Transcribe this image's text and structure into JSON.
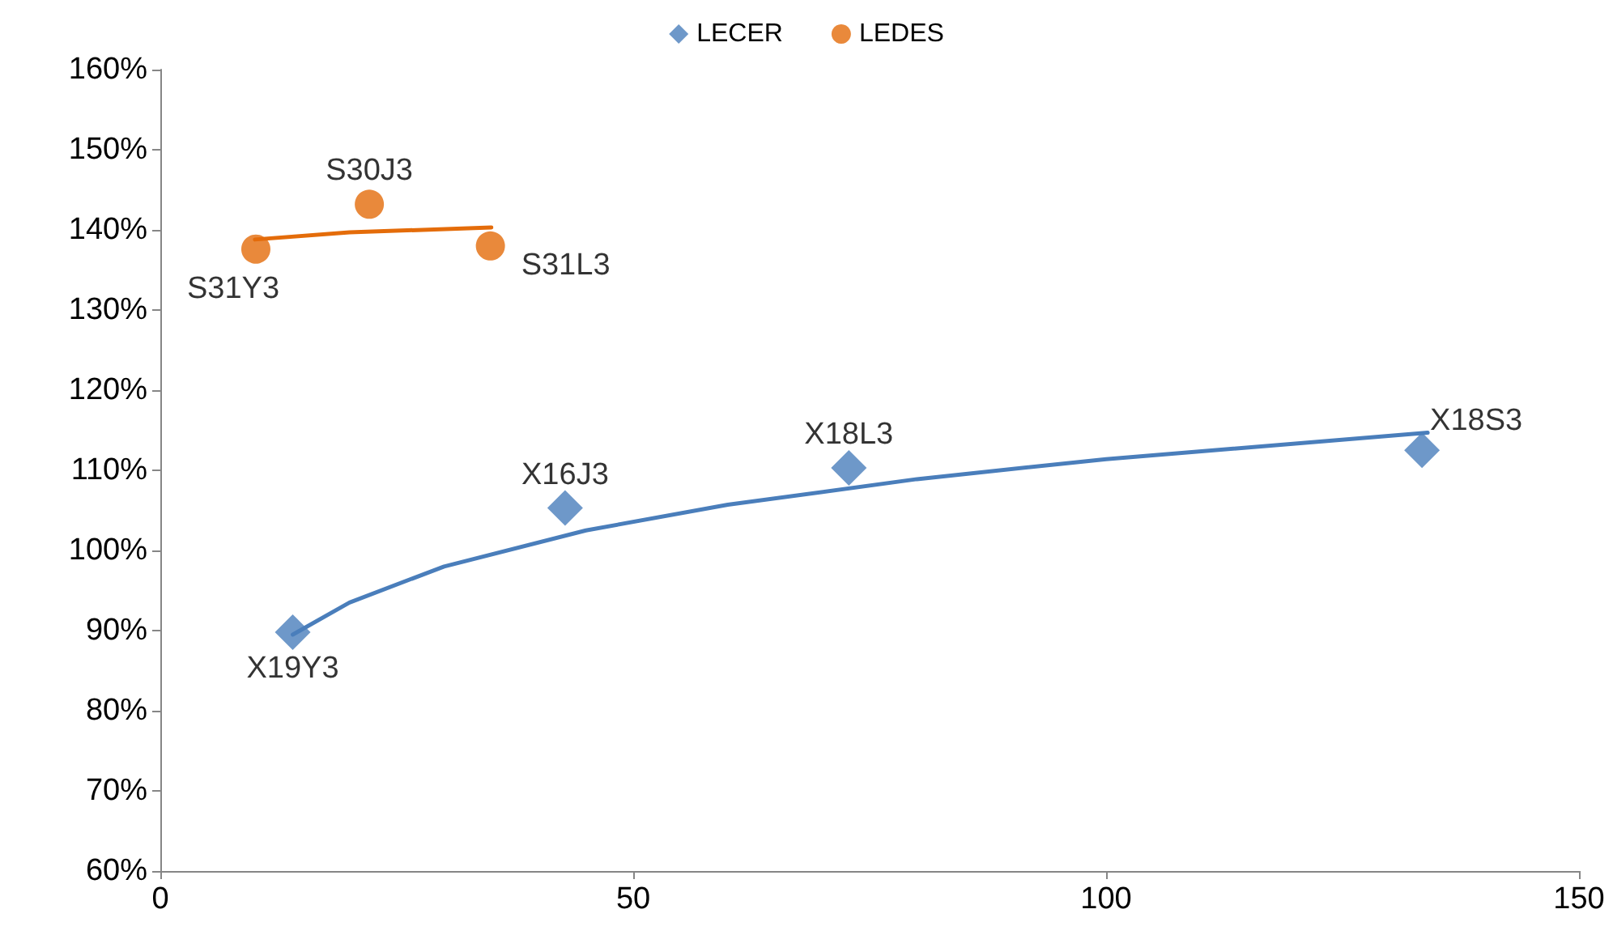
{
  "chart_data": {
    "type": "scatter",
    "series": [
      {
        "name": "LECER",
        "color": "#4a7ebb",
        "marker": "diamond",
        "x": [
          14,
          42.8,
          72.8,
          133.4
        ],
        "values": [
          89.8,
          105.3,
          110.3,
          112.5
        ]
      },
      {
        "name": "LEDES",
        "color": "#e46c0a",
        "marker": "circle",
        "x": [
          10.1,
          22.1,
          34.9
        ],
        "values": [
          137.6,
          143.2,
          138
        ]
      },
      {
        "type": "line",
        "color": "#4a7ebb",
        "marker": "none",
        "x": [
          14,
          20,
          30,
          45,
          60,
          80,
          100,
          134
        ],
        "values": [
          89.5,
          93.5,
          98,
          102.5,
          105.7,
          108.9,
          111.4,
          114.7
        ]
      },
      {
        "type": "line",
        "color": "#e46c0a",
        "marker": "none",
        "x": [
          10,
          20,
          35
        ],
        "values": [
          138.8,
          139.7,
          140.3
        ]
      }
    ],
    "annotations": [
      {
        "text": "X19Y3",
        "x": 14,
        "y": 89.8
      },
      {
        "text": "X16J3",
        "x": 42.8,
        "y": 105.3
      },
      {
        "text": "X18L3",
        "x": 72.8,
        "y": 110.3
      },
      {
        "text": "X18S3",
        "x": 133.4,
        "y": 112.5
      },
      {
        "text": "S31Y3",
        "x": 10.1,
        "y": 137.6
      },
      {
        "text": "S30J3",
        "x": 22.1,
        "y": 143.2
      },
      {
        "text": "S31L3",
        "x": 34.9,
        "y": 138
      }
    ],
    "xlim": [
      0,
      150
    ],
    "xticks": [
      0,
      50,
      100,
      150
    ],
    "ylim": [
      60,
      160
    ],
    "yticks": [
      {
        "value": 60,
        "label": "60%"
      },
      {
        "value": 70,
        "label": "70%"
      },
      {
        "value": 80,
        "label": "80%"
      },
      {
        "value": 90,
        "label": "90%"
      },
      {
        "value": 100,
        "label": "100%"
      },
      {
        "value": 110,
        "label": "110%"
      },
      {
        "value": 120,
        "label": "120%"
      },
      {
        "value": 130,
        "label": "130%"
      },
      {
        "value": 140,
        "label": "140%"
      },
      {
        "value": 150,
        "label": "150%"
      },
      {
        "value": 160,
        "label": "160%"
      }
    ],
    "grid": false,
    "legend": "top"
  }
}
